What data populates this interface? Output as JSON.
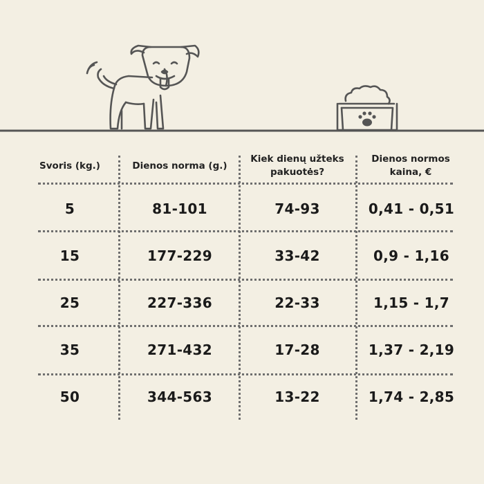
{
  "table": {
    "headers": [
      "Svoris (kg.)",
      "Dienos norma (g.)",
      "Kiek dienų užteks pakuotės?",
      "Dienos normos kaina, €"
    ],
    "rows": [
      [
        "5",
        "81-101",
        "74-93",
        "0,41 - 0,51"
      ],
      [
        "15",
        "177-229",
        "33-42",
        "0,9 - 1,16"
      ],
      [
        "25",
        "227-336",
        "22-33",
        "1,15 - 1,7"
      ],
      [
        "35",
        "271-432",
        "17-28",
        "1,37 - 2,19"
      ],
      [
        "50",
        "344-563",
        "13-22",
        "1,74 - 2,85"
      ]
    ]
  },
  "icons": {
    "dog": "dog-illustration-icon",
    "bowl": "food-bowl-with-paw-icon"
  },
  "colors": {
    "background": "#f3efe3",
    "line": "#555555",
    "text": "#1f1f1f"
  }
}
